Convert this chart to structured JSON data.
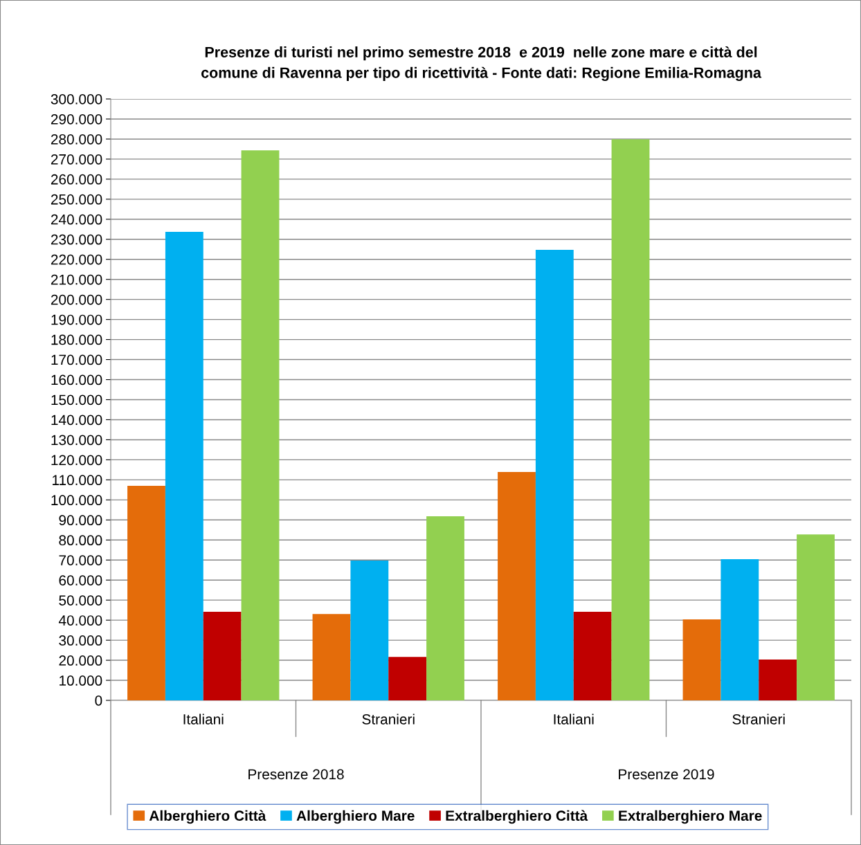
{
  "chart_data": {
    "type": "bar",
    "title": "Presenze di turisti nel primo semestre 2018  e 2019  nelle zone mare e città del\ncomune di Ravenna per tipo di ricettività - Fonte dati: Regione Emilia-Romagna",
    "categories": [
      "Italiani",
      "Stranieri",
      "Italiani",
      "Stranieri"
    ],
    "annotations": [
      "Presenze 2018",
      "Presenze 2019"
    ],
    "series": [
      {
        "name": "Alberghiero Città",
        "color": "#e46c0a",
        "values": [
          107000,
          43100,
          113900,
          40400
        ]
      },
      {
        "name": "Alberghiero Mare",
        "color": "#00b0f0",
        "values": [
          233700,
          69700,
          224700,
          70400
        ]
      },
      {
        "name": "Extralberghiero Città",
        "color": "#c00000",
        "values": [
          44200,
          21700,
          44200,
          20400
        ]
      },
      {
        "name": "Extralberghiero Mare",
        "color": "#92d050",
        "values": [
          274400,
          91800,
          279900,
          82800
        ]
      }
    ],
    "ylim": [
      0,
      300000
    ],
    "yticks": [
      {
        "value": 0,
        "label": "0"
      },
      {
        "value": 10000,
        "label": "10.000"
      },
      {
        "value": 20000,
        "label": "20.000"
      },
      {
        "value": 30000,
        "label": "30.000"
      },
      {
        "value": 40000,
        "label": "40.000"
      },
      {
        "value": 50000,
        "label": "50.000"
      },
      {
        "value": 60000,
        "label": "60.000"
      },
      {
        "value": 70000,
        "label": "70.000"
      },
      {
        "value": 80000,
        "label": "80.000"
      },
      {
        "value": 90000,
        "label": "90.000"
      },
      {
        "value": 100000,
        "label": "100.000"
      },
      {
        "value": 110000,
        "label": "110.000"
      },
      {
        "value": 120000,
        "label": "120.000"
      },
      {
        "value": 130000,
        "label": "130.000"
      },
      {
        "value": 140000,
        "label": "140.000"
      },
      {
        "value": 150000,
        "label": "150.000"
      },
      {
        "value": 160000,
        "label": "160.000"
      },
      {
        "value": 170000,
        "label": "170.000"
      },
      {
        "value": 180000,
        "label": "180.000"
      },
      {
        "value": 190000,
        "label": "190.000"
      },
      {
        "value": 200000,
        "label": "200.000"
      },
      {
        "value": 210000,
        "label": "210.000"
      },
      {
        "value": 220000,
        "label": "220.000"
      },
      {
        "value": 230000,
        "label": "230.000"
      },
      {
        "value": 240000,
        "label": "240.000"
      },
      {
        "value": 250000,
        "label": "250.000"
      },
      {
        "value": 260000,
        "label": "260.000"
      },
      {
        "value": 270000,
        "label": "270.000"
      },
      {
        "value": 280000,
        "label": "280.000"
      },
      {
        "value": 290000,
        "label": "290.000"
      },
      {
        "value": 300000,
        "label": "300.000"
      }
    ],
    "grid": "y",
    "legend": "bottom"
  }
}
